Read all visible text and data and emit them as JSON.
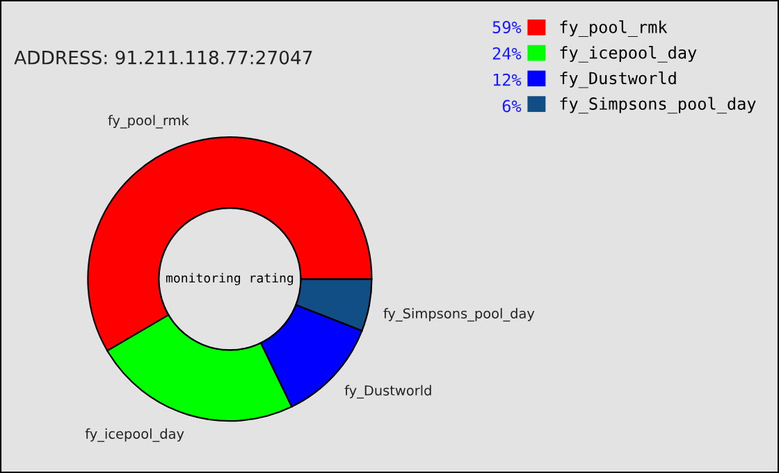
{
  "chart_data": {
    "type": "donut",
    "subtitle": "ADDRESS: 91.211.118.77:27047",
    "categories": [
      "fy_pool_rmk",
      "fy_icepool_day",
      "fy_Dustworld",
      "fy_Simpsons_pool_day"
    ],
    "values": [
      59,
      24,
      12,
      6
    ],
    "value_labels": [
      "59%",
      "24%",
      "12%",
      "6%"
    ],
    "colors": [
      "#ff0000",
      "#00ff00",
      "#0000ff",
      "#114e86"
    ],
    "annotations": [
      "monitoring rating"
    ],
    "legend": "top right"
  }
}
